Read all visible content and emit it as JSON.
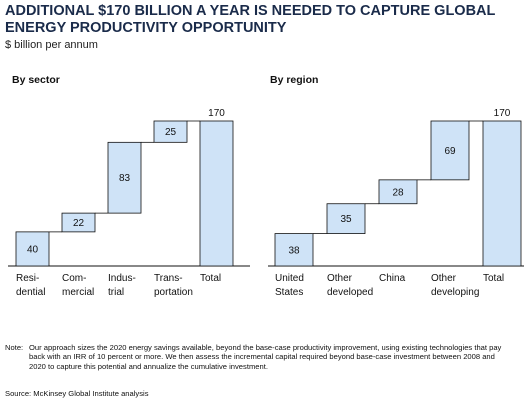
{
  "title": "ADDITIONAL $170 BILLION A YEAR IS NEEDED TO CAPTURE GLOBAL ENERGY PRODUCTIVITY OPPORTUNITY",
  "subtitle": "$ billion per annum",
  "note_label": "Note:",
  "note_text": "Our approach sizes the 2020 energy savings available, beyond the base-case productivity improvement, using existing technologies that pay back with an IRR of 10 percent or more. We then assess the incremental capital required beyond base-case investment between 2008 and 2020 to capture this potential and annualize the cumulative investment.",
  "source": "Source: McKinsey Global Institute analysis",
  "colors": {
    "bar_fill": "#cfe3f7",
    "title": "#1a2b4a"
  },
  "chart_data": [
    {
      "type": "bar",
      "subtype": "waterfall",
      "title": "By sector",
      "categories": [
        [
          "Resi-",
          "dential"
        ],
        [
          "Com-",
          "mercial"
        ],
        [
          "Indus-",
          "trial"
        ],
        [
          "Trans-",
          "portation"
        ],
        [
          "Total"
        ]
      ],
      "values": [
        40,
        22,
        83,
        25,
        170
      ],
      "total_index": 4,
      "ylim": [
        0,
        170
      ]
    },
    {
      "type": "bar",
      "subtype": "waterfall",
      "title": "By region",
      "categories": [
        [
          "United",
          "States"
        ],
        [
          "Other",
          "developed"
        ],
        [
          "China"
        ],
        [
          "Other",
          "developing"
        ],
        [
          "Total"
        ]
      ],
      "values": [
        38,
        35,
        28,
        69,
        170
      ],
      "total_index": 4,
      "ylim": [
        0,
        170
      ]
    }
  ]
}
